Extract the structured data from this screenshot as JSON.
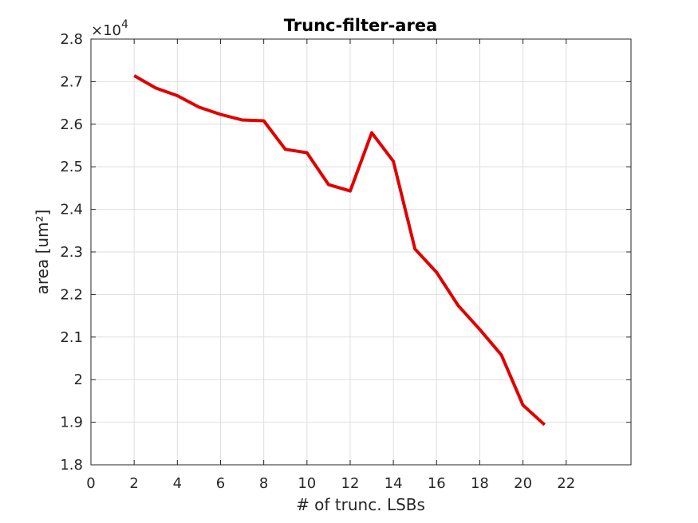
{
  "chart_data": {
    "type": "line",
    "title": "Trunc-filter-area",
    "xlabel": "# of trunc. LSBs",
    "ylabel": "area [um²]",
    "y_multiplier": {
      "prefix": "×10",
      "exponent": "4"
    },
    "xlim": [
      0,
      25
    ],
    "ylim": [
      1.8,
      2.8
    ],
    "x_ticks": [
      0,
      2,
      4,
      6,
      8,
      10,
      12,
      14,
      16,
      18,
      20,
      22
    ],
    "y_ticks": [
      1.8,
      1.9,
      2.0,
      2.1,
      2.2,
      2.3,
      2.4,
      2.5,
      2.6,
      2.7,
      2.8
    ],
    "x_tick_labels": [
      "0",
      "2",
      "4",
      "6",
      "8",
      "10",
      "12",
      "14",
      "16",
      "18",
      "20",
      "22"
    ],
    "y_tick_labels": [
      "1.8",
      "1.9",
      "2",
      "2.1",
      "2.2",
      "2.3",
      "2.4",
      "2.5",
      "2.6",
      "2.7",
      "2.8"
    ],
    "grid": true,
    "series": [
      {
        "color": "#e00000",
        "x": [
          2,
          3,
          4,
          5,
          6,
          7,
          8,
          9,
          10,
          11,
          12,
          13,
          14,
          15,
          16,
          17,
          18,
          19,
          20,
          21
        ],
        "y": [
          2.714,
          2.685,
          2.667,
          2.64,
          2.623,
          2.61,
          2.608,
          2.541,
          2.533,
          2.458,
          2.443,
          2.58,
          2.513,
          2.307,
          2.252,
          2.174,
          2.118,
          2.058,
          1.94,
          1.894
        ]
      }
    ]
  }
}
